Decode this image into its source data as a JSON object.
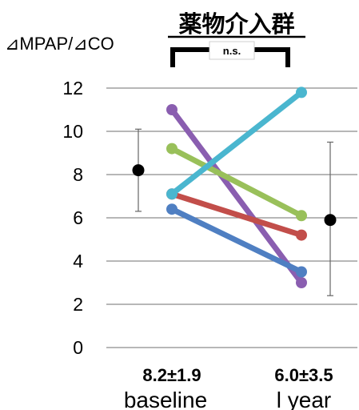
{
  "chart_data": {
    "type": "line",
    "title": "薬物介入群",
    "ylabel": "⊿MPAP/⊿CO",
    "ylim": [
      0,
      12
    ],
    "yticks": [
      0,
      2,
      4,
      6,
      8,
      10,
      12
    ],
    "grid": true,
    "categories": [
      "baseline",
      "l year"
    ],
    "group_stats": [
      "8.2±1.9",
      "6.0±3.5"
    ],
    "means": [
      8.2,
      5.9
    ],
    "error_bars": [
      [
        6.3,
        10.1
      ],
      [
        2.4,
        9.5
      ]
    ],
    "significance": "n.s.",
    "series": [
      {
        "values": [
          11.0,
          3.0
        ],
        "color": "#8a5eb0"
      },
      {
        "values": [
          9.2,
          6.1
        ],
        "color": "#99c05a"
      },
      {
        "values": [
          7.1,
          5.2
        ],
        "color": "#c24e4a"
      },
      {
        "values": [
          6.4,
          3.5
        ],
        "color": "#4f7fc2"
      },
      {
        "values": [
          7.1,
          11.8
        ],
        "color": "#4ab6cf"
      }
    ]
  }
}
